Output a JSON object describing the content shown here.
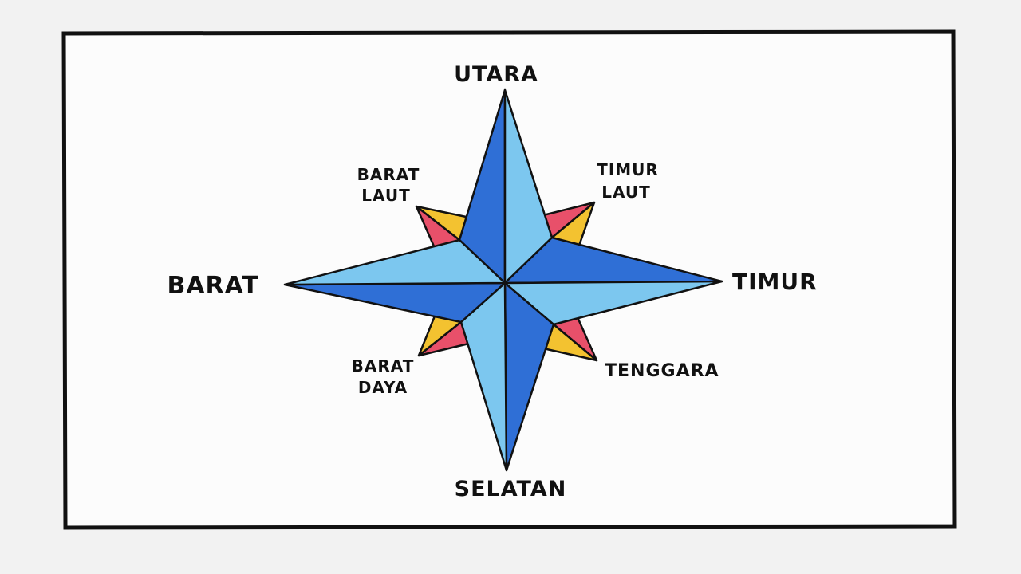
{
  "compass": {
    "north": "UTARA",
    "south": "SELATAN",
    "east": "TIMUR",
    "west": "BARAT",
    "northwest": [
      "BARAT",
      "LAUT"
    ],
    "northeast": [
      "TIMUR",
      "LAUT"
    ],
    "southwest": [
      "BARAT",
      "DAYA"
    ],
    "southeast": "TENGGARA"
  },
  "colors": {
    "paper": "#f2f2f2",
    "frame": "#111111",
    "blue_dark": "#2f6fd6",
    "blue_light": "#7cc7ef",
    "yellow": "#f3c230",
    "red": "#e8506a"
  }
}
